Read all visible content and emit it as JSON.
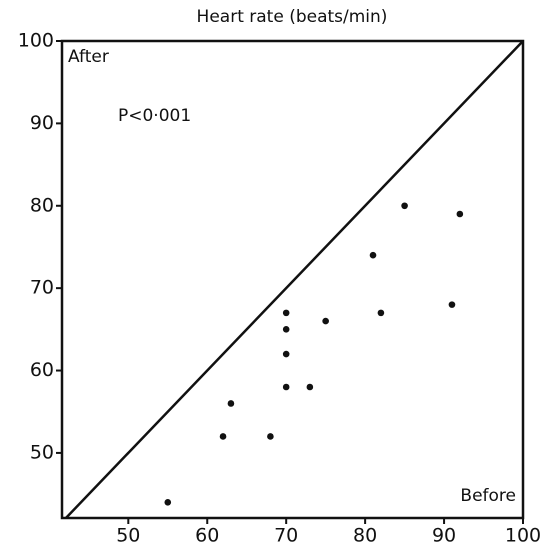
{
  "chart_data": {
    "type": "scatter",
    "title": "Heart rate (beats/min)",
    "y_label": "After",
    "x_label": "Before",
    "annotation": "P<0·001",
    "x": [
      85,
      92,
      81,
      91,
      82,
      75,
      70,
      70,
      70,
      70,
      73,
      63,
      62,
      68,
      55
    ],
    "values": [
      80,
      79,
      74,
      68,
      67,
      66,
      67,
      65,
      62,
      58,
      58,
      56,
      52,
      52,
      44
    ],
    "color": "#111111",
    "xlim": [
      41.6,
      100
    ],
    "ylim": [
      42.1,
      100
    ],
    "xticks": [
      50,
      60,
      70,
      80,
      90,
      100
    ],
    "yticks": [
      50,
      60,
      70,
      80,
      90,
      100
    ],
    "identity_line": true
  }
}
